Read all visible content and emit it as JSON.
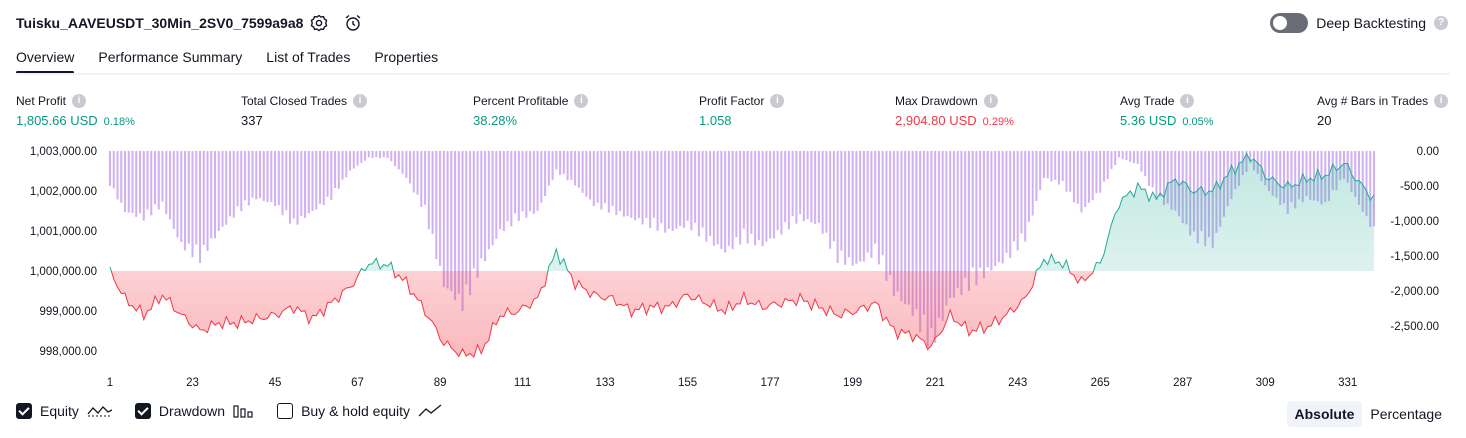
{
  "header": {
    "title": "Tuisku_AAVEUSDT_30Min_2SV0_7599a9a8",
    "deep_backtesting_label": "Deep Backtesting",
    "deep_backtesting_enabled": false
  },
  "tabs": [
    {
      "label": "Overview",
      "active": true
    },
    {
      "label": "Performance Summary",
      "active": false
    },
    {
      "label": "List of Trades",
      "active": false
    },
    {
      "label": "Properties",
      "active": false
    }
  ],
  "stats": [
    {
      "label": "Net Profit",
      "value": "1,805.66 USD",
      "pct": "0.18%",
      "tone": "pos"
    },
    {
      "label": "Total Closed Trades",
      "value": "337",
      "pct": "",
      "tone": "neu"
    },
    {
      "label": "Percent Profitable",
      "value": "38.28%",
      "pct": "",
      "tone": "pos"
    },
    {
      "label": "Profit Factor",
      "value": "1.058",
      "pct": "",
      "tone": "pos"
    },
    {
      "label": "Max Drawdown",
      "value": "2,904.80 USD",
      "pct": "0.29%",
      "tone": "neg"
    },
    {
      "label": "Avg Trade",
      "value": "5.36 USD",
      "pct": "0.05%",
      "tone": "pos"
    },
    {
      "label": "Avg # Bars in Trades",
      "value": "20",
      "pct": "",
      "tone": "neu"
    }
  ],
  "legend": {
    "equity_label": "Equity",
    "equity_checked": true,
    "drawdown_label": "Drawdown",
    "drawdown_checked": true,
    "buyhold_label": "Buy & hold equity",
    "buyhold_checked": false
  },
  "mode": {
    "absolute_label": "Absolute",
    "percentage_label": "Percentage",
    "selected": "Absolute"
  },
  "colors": {
    "positive": "#089981",
    "negative": "#f23645",
    "drawdown_bar": "#c9a3f0",
    "equity_line_pos": "#22ab94",
    "equity_line_neg": "#f23645"
  },
  "chart_data": {
    "type": "area",
    "baseline": 1000000,
    "x_ticks": [
      "1",
      "23",
      "45",
      "67",
      "89",
      "111",
      "133",
      "155",
      "177",
      "199",
      "221",
      "243",
      "265",
      "287",
      "309",
      "331"
    ],
    "y_left_ticks": [
      "1,003,000.00",
      "1,002,000.00",
      "1,001,000.00",
      "1,000,000.00",
      "999,000.00",
      "998,000.00"
    ],
    "y_left_range": [
      997750,
      1003000
    ],
    "y_right_ticks": [
      "0.00",
      "-500.00",
      "-1,000.00",
      "-1,500.00",
      "-2,000.00",
      "-2,500.00"
    ],
    "y_right_range": [
      -3000,
      0
    ],
    "series": [
      {
        "name": "Equity",
        "x": [
          1,
          5,
          10,
          15,
          20,
          25,
          30,
          35,
          40,
          45,
          50,
          55,
          60,
          65,
          70,
          75,
          80,
          85,
          90,
          95,
          100,
          105,
          110,
          115,
          120,
          125,
          130,
          135,
          140,
          145,
          150,
          155,
          160,
          165,
          170,
          175,
          180,
          185,
          190,
          195,
          200,
          205,
          210,
          215,
          220,
          225,
          230,
          235,
          240,
          245,
          250,
          255,
          260,
          265,
          270,
          275,
          280,
          285,
          290,
          295,
          300,
          305,
          310,
          315,
          320,
          325,
          330,
          335,
          338
        ],
        "values": [
          1000000,
          999300,
          998900,
          999400,
          998900,
          998500,
          998700,
          998700,
          998800,
          998900,
          999100,
          998800,
          999200,
          999600,
          1000200,
          1000150,
          999700,
          999000,
          998200,
          997900,
          998000,
          998900,
          999000,
          999300,
          1000500,
          999700,
          999400,
          999300,
          999000,
          999100,
          999100,
          999400,
          999200,
          999000,
          999300,
          999100,
          999200,
          999300,
          999100,
          998900,
          999000,
          999200,
          998500,
          998400,
          998100,
          998900,
          998500,
          998600,
          998900,
          999300,
          1000300,
          1000200,
          999700,
          1000200,
          1001700,
          1002100,
          1001800,
          1002300,
          1002000,
          1002000,
          1002500,
          1002900,
          1002300,
          1002100,
          1002300,
          1002400,
          1002700,
          1002100,
          1001800
        ]
      },
      {
        "name": "Drawdown",
        "x": [
          1,
          5,
          10,
          15,
          20,
          25,
          30,
          35,
          40,
          45,
          50,
          55,
          60,
          65,
          70,
          75,
          80,
          85,
          90,
          95,
          100,
          105,
          110,
          115,
          120,
          125,
          130,
          135,
          140,
          145,
          150,
          155,
          160,
          165,
          170,
          175,
          180,
          185,
          190,
          195,
          200,
          205,
          210,
          215,
          220,
          225,
          230,
          235,
          240,
          245,
          250,
          255,
          260,
          265,
          270,
          275,
          280,
          285,
          290,
          295,
          300,
          305,
          310,
          315,
          320,
          325,
          330,
          335,
          338
        ],
        "values": [
          -500,
          -900,
          -1000,
          -800,
          -1400,
          -1600,
          -1200,
          -900,
          -700,
          -800,
          -1100,
          -900,
          -700,
          -300,
          -100,
          -100,
          -400,
          -900,
          -2000,
          -2300,
          -1700,
          -1200,
          -1000,
          -900,
          -300,
          -500,
          -800,
          -900,
          -1000,
          -1100,
          -1200,
          -1100,
          -1300,
          -1500,
          -1300,
          -1400,
          -1200,
          -1000,
          -1100,
          -1600,
          -1700,
          -1500,
          -2100,
          -2400,
          -2900,
          -2200,
          -2000,
          -1800,
          -1600,
          -1300,
          -400,
          -500,
          -900,
          -600,
          -100,
          -200,
          -700,
          -900,
          -1300,
          -1400,
          -700,
          -200,
          -600,
          -900,
          -700,
          -800,
          -400,
          -900,
          -1200
        ]
      }
    ]
  }
}
